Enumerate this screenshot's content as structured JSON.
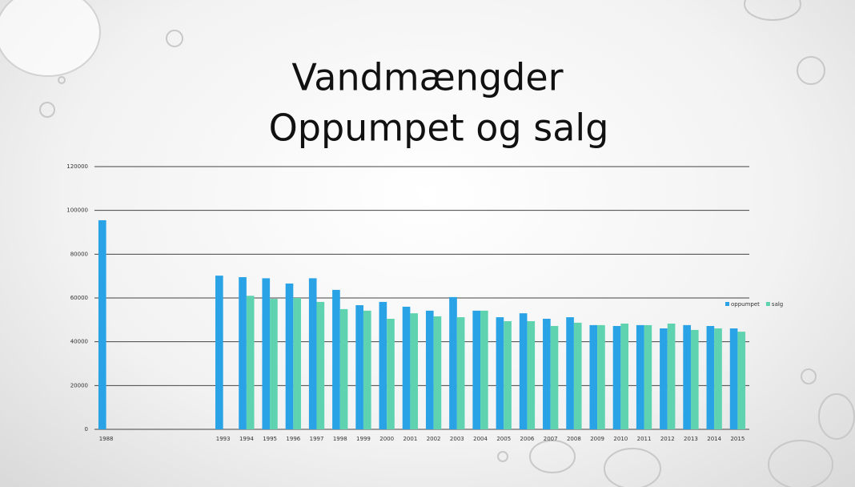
{
  "chart_data": {
    "type": "bar",
    "title": "Vandmængder",
    "subtitle": "Oppumpet og salg",
    "categories": [
      "1988",
      null,
      null,
      null,
      null,
      "1993",
      "1994",
      "1995",
      "1996",
      "1997",
      "1998",
      "1999",
      "2000",
      "2001",
      "2002",
      "2003",
      "2004",
      "2005",
      "2006",
      "2007",
      "2008",
      "2009",
      "2010",
      "2011",
      "2012",
      "2013",
      "2014",
      "2015"
    ],
    "series": [
      {
        "name": "oppumpet",
        "color": "#2aa3e6",
        "values": [
          95500,
          null,
          null,
          null,
          null,
          70200,
          69500,
          69000,
          66600,
          69000,
          63700,
          56700,
          58200,
          56000,
          54200,
          60400,
          54200,
          51200,
          53000,
          50500,
          51200,
          47600,
          47200,
          47600,
          46100,
          47600,
          47200,
          46100
        ]
      },
      {
        "name": "salg",
        "color": "#5fd3b0",
        "values": [
          null,
          null,
          null,
          null,
          null,
          null,
          61000,
          59600,
          60000,
          58200,
          54900,
          54200,
          50500,
          53000,
          51600,
          51200,
          54200,
          49400,
          49400,
          47200,
          48700,
          47600,
          48300,
          47600,
          48300,
          45400,
          46100,
          44600
        ]
      }
    ],
    "ylim": [
      0,
      120000
    ],
    "yticks": [
      0,
      20000,
      40000,
      60000,
      80000,
      100000,
      120000
    ],
    "grid": true,
    "legend": "right"
  }
}
